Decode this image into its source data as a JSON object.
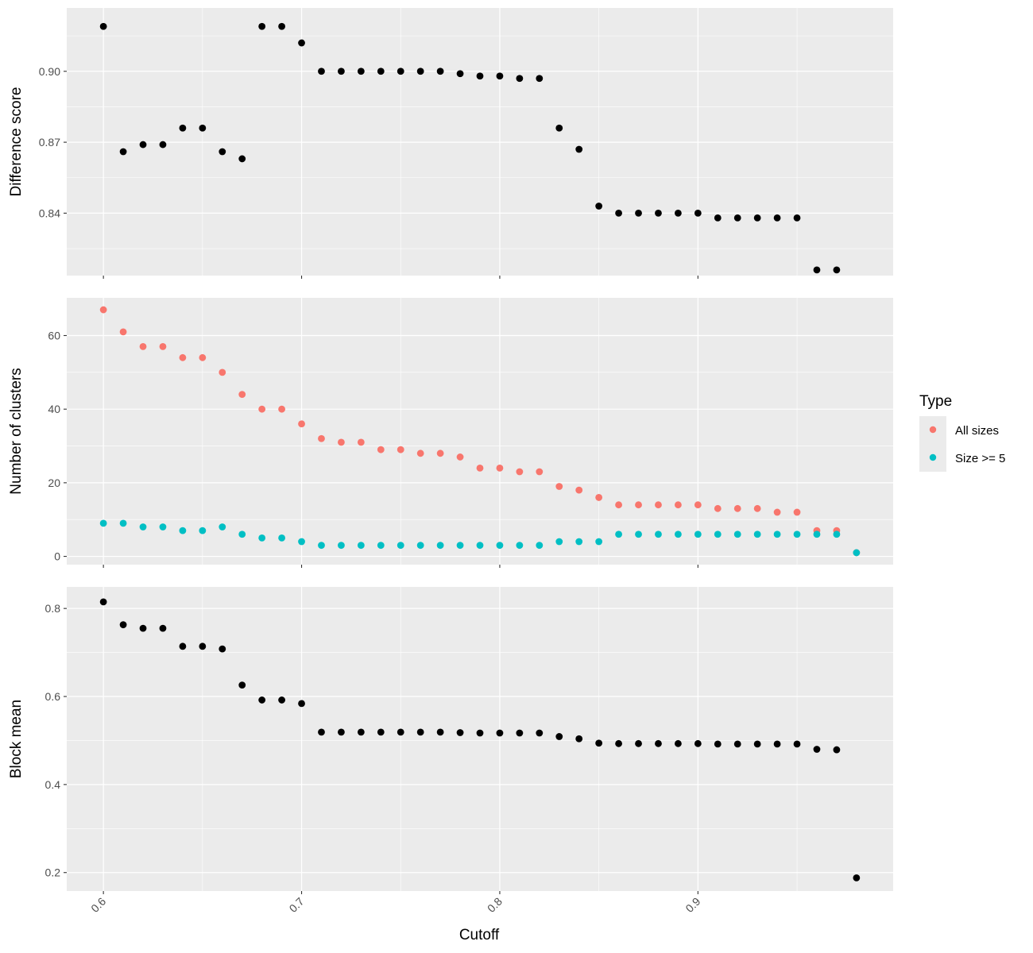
{
  "chart_data": {
    "type": "scatter",
    "x_label": "Cutoff",
    "x_range": [
      0.5815,
      0.9985
    ],
    "x_ticks": [
      0.6,
      0.7,
      0.8,
      0.9
    ],
    "x_tick_labels": [
      "0.6",
      "0.7",
      "0.8",
      "0.9"
    ],
    "legend": {
      "title": "Type",
      "position": "right",
      "entries": [
        {
          "label": "All sizes",
          "color": "#F8766D"
        },
        {
          "label": "Size >= 5",
          "color": "#00BFC4"
        }
      ]
    },
    "grid": true,
    "panels": [
      {
        "y_label": "Difference score",
        "y_range": [
          0.8136,
          0.9268
        ],
        "y_ticks": [
          0.84,
          0.87,
          0.9
        ],
        "y_tick_labels": [
          "0.84",
          "0.87",
          "0.90"
        ],
        "y_minor": [
          0.825,
          0.855,
          0.885,
          0.915
        ],
        "series": [
          {
            "color": "#000000",
            "x": [
              0.6,
              0.61,
              0.62,
              0.63,
              0.64,
              0.65,
              0.66,
              0.67,
              0.68,
              0.69,
              0.7,
              0.71,
              0.72,
              0.73,
              0.74,
              0.75,
              0.76,
              0.77,
              0.78,
              0.79,
              0.8,
              0.81,
              0.82,
              0.83,
              0.84,
              0.85,
              0.86,
              0.87,
              0.88,
              0.89,
              0.9,
              0.91,
              0.92,
              0.93,
              0.94,
              0.95,
              0.96,
              0.97
            ],
            "y": [
              0.919,
              0.866,
              0.869,
              0.869,
              0.876,
              0.876,
              0.866,
              0.863,
              0.919,
              0.919,
              0.912,
              0.9,
              0.9,
              0.9,
              0.9,
              0.9,
              0.9,
              0.9,
              0.899,
              0.898,
              0.898,
              0.897,
              0.897,
              0.876,
              0.867,
              0.843,
              0.84,
              0.84,
              0.84,
              0.84,
              0.84,
              0.838,
              0.838,
              0.838,
              0.838,
              0.838,
              0.816,
              0.816
            ]
          }
        ]
      },
      {
        "y_label": "Number of clusters",
        "y_range": [
          -2.25,
          70.25
        ],
        "y_ticks": [
          0,
          20,
          40,
          60
        ],
        "y_tick_labels": [
          "0",
          "20",
          "40",
          "60"
        ],
        "y_minor": [
          10,
          30,
          50
        ],
        "series": [
          {
            "name": "All sizes",
            "color": "#F8766D",
            "x": [
              0.6,
              0.61,
              0.62,
              0.63,
              0.64,
              0.65,
              0.66,
              0.67,
              0.68,
              0.69,
              0.7,
              0.71,
              0.72,
              0.73,
              0.74,
              0.75,
              0.76,
              0.77,
              0.78,
              0.79,
              0.8,
              0.81,
              0.82,
              0.83,
              0.84,
              0.85,
              0.86,
              0.87,
              0.88,
              0.89,
              0.9,
              0.91,
              0.92,
              0.93,
              0.94,
              0.95,
              0.96,
              0.97,
              0.98
            ],
            "y": [
              67,
              61,
              57,
              57,
              54,
              54,
              50,
              44,
              40,
              40,
              36,
              32,
              31,
              31,
              29,
              29,
              28,
              28,
              27,
              24,
              24,
              23,
              23,
              19,
              18,
              16,
              14,
              14,
              14,
              14,
              14,
              13,
              13,
              13,
              12,
              12,
              7,
              7,
              1
            ]
          },
          {
            "name": "Size >= 5",
            "color": "#00BFC4",
            "x": [
              0.6,
              0.61,
              0.62,
              0.63,
              0.64,
              0.65,
              0.66,
              0.67,
              0.68,
              0.69,
              0.7,
              0.71,
              0.72,
              0.73,
              0.74,
              0.75,
              0.76,
              0.77,
              0.78,
              0.79,
              0.8,
              0.81,
              0.82,
              0.83,
              0.84,
              0.85,
              0.86,
              0.87,
              0.88,
              0.89,
              0.9,
              0.91,
              0.92,
              0.93,
              0.94,
              0.95,
              0.96,
              0.97,
              0.98
            ],
            "y": [
              9,
              9,
              8,
              8,
              7,
              7,
              8,
              6,
              5,
              5,
              4,
              3,
              3,
              3,
              3,
              3,
              3,
              3,
              3,
              3,
              3,
              3,
              3,
              4,
              4,
              4,
              6,
              6,
              6,
              6,
              6,
              6,
              6,
              6,
              6,
              6,
              6,
              6,
              1
            ]
          }
        ]
      },
      {
        "y_label": "Block mean",
        "y_range": [
          0.158,
          0.849
        ],
        "y_ticks": [
          0.2,
          0.4,
          0.6,
          0.8
        ],
        "y_tick_labels": [
          "0.2",
          "0.4",
          "0.6",
          "0.8"
        ],
        "y_minor": [
          0.3,
          0.5,
          0.7
        ],
        "series": [
          {
            "color": "#000000",
            "x": [
              0.6,
              0.61,
              0.62,
              0.63,
              0.64,
              0.65,
              0.66,
              0.67,
              0.68,
              0.69,
              0.7,
              0.71,
              0.72,
              0.73,
              0.74,
              0.75,
              0.76,
              0.77,
              0.78,
              0.79,
              0.8,
              0.81,
              0.82,
              0.83,
              0.84,
              0.85,
              0.86,
              0.87,
              0.88,
              0.89,
              0.9,
              0.91,
              0.92,
              0.93,
              0.94,
              0.95,
              0.96,
              0.97,
              0.98
            ],
            "y": [
              0.815,
              0.763,
              0.755,
              0.755,
              0.714,
              0.714,
              0.708,
              0.626,
              0.592,
              0.592,
              0.584,
              0.519,
              0.519,
              0.519,
              0.519,
              0.519,
              0.519,
              0.519,
              0.518,
              0.517,
              0.517,
              0.517,
              0.517,
              0.509,
              0.504,
              0.494,
              0.493,
              0.493,
              0.493,
              0.493,
              0.493,
              0.492,
              0.492,
              0.492,
              0.492,
              0.492,
              0.48,
              0.479,
              0.188
            ]
          }
        ]
      }
    ]
  }
}
